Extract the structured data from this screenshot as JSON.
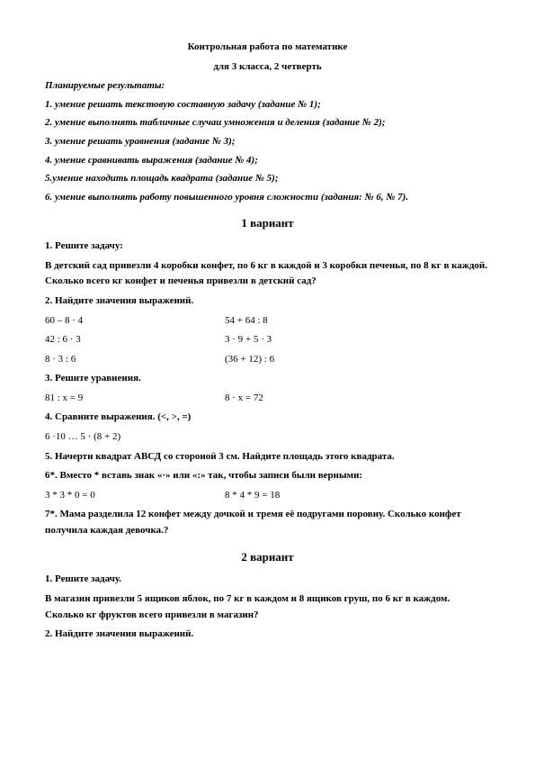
{
  "header": {
    "title1": "Контрольная работа по математике",
    "title2": "для 3 класса, 2 четверть"
  },
  "results": {
    "heading": "Планируемые результаты:",
    "items": [
      "1. умение решать текстовую составную задачу (задание № 1);",
      "2. умение выполнять табличные случаи умножения и деления (задание № 2);",
      "3. умение решать уравнения (задание № 3);",
      "4. умение сравнивать выражения (задание № 4);",
      "5.умение находить площадь квадрата (задание № 5);",
      "6. умение выполнять работу повышенного уровня сложности (задания: № 6, № 7)."
    ]
  },
  "variant1": {
    "title": "1 вариант",
    "t1": {
      "label": "1. Решите задачу:",
      "text": "В детский сад привезли 4 коробки конфет, по 6 кг в каждой и 3 коробки печенья, по 8 кг в каждой. Сколько всего кг конфет и печенья привезли в детский сад?"
    },
    "t2": {
      "label": "2. Найдите значения выражений.",
      "rows": [
        {
          "a": "60 – 8 · 4",
          "b": "54 + 64 : 8"
        },
        {
          "a": "42 : 6 · 3",
          "b": "3 · 9 + 5 · 3"
        },
        {
          "a": "8 · 3 : 6",
          "b": "(36 + 12) : 6"
        }
      ]
    },
    "t3": {
      "label": "3. Решите уравнения.",
      "a": "81 : х = 9",
      "b": "8 · х = 72"
    },
    "t4": {
      "label": "4. Сравните выражения. (<, >, =)",
      "expr": "6 ·10 … 5 · (8 + 2)"
    },
    "t5": {
      "label": "5. Начерти квадрат АВСД со стороной 3 см. Найдите площадь этого квадрата."
    },
    "t6": {
      "label": "6*. Вместо * вставь знак «·» или «:» так, чтобы записи были верными:",
      "a": "3 * 3 * 0 = 0",
      "b": "8 * 4 * 9 = 18"
    },
    "t7": {
      "label": "7*. Мама разделила 12 конфет между дочкой и тремя её подругами поровну. Сколько конфет получила каждая девочка.?"
    }
  },
  "variant2": {
    "title": "2 вариант",
    "t1": {
      "label": "1. Решите задачу.",
      "text": "В магазин привезли 5 ящиков яблок, по 7 кг в каждом и 8 ящиков груш, по 6 кг в каждом. Сколько кг фруктов всего привезли в магазин?"
    },
    "t2": {
      "label": "2. Найдите значения выражений."
    }
  }
}
